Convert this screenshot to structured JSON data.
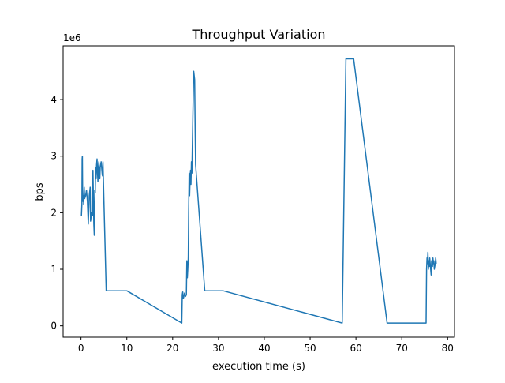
{
  "chart_data": {
    "type": "line",
    "title": "Throughput Variation",
    "xlabel": "execution time (s)",
    "ylabel": "bps",
    "y_offset_text": "1e6",
    "xlim": [
      -3.9,
      81.5
    ],
    "ylim": [
      -200000,
      4950000
    ],
    "x_ticks": [
      0,
      10,
      20,
      30,
      40,
      50,
      60,
      70,
      80
    ],
    "x_tick_labels": [
      "0",
      "10",
      "20",
      "30",
      "40",
      "50",
      "60",
      "70",
      "80"
    ],
    "y_ticks": [
      0,
      1000000,
      2000000,
      3000000,
      4000000
    ],
    "y_tick_labels": [
      "0",
      "1",
      "2",
      "3",
      "4"
    ],
    "grid": false,
    "color": "#1f77b4",
    "series": [
      {
        "x": [
          0.1,
          0.2,
          0.25,
          0.3,
          0.35,
          0.4,
          0.5,
          0.6,
          0.7,
          0.8,
          1.0,
          1.2,
          1.4,
          1.6,
          1.8,
          2.0,
          2.1,
          2.3,
          2.5,
          2.6,
          2.8,
          2.9,
          3.0,
          3.1,
          3.2,
          3.3,
          3.4,
          3.5,
          3.6,
          3.7,
          3.8,
          3.9,
          4.0,
          4.1,
          4.2,
          4.3,
          4.4,
          4.5,
          4.6,
          4.7,
          4.8,
          5.0,
          5.5,
          10.0,
          22.0,
          22.1,
          22.2,
          22.3,
          22.4,
          22.6,
          22.8,
          23.0,
          23.1,
          23.2,
          23.3,
          23.4,
          23.5,
          23.6,
          23.7,
          23.8,
          23.9,
          24.0,
          24.1,
          24.2,
          24.4,
          24.6,
          24.8,
          24.9,
          25.0,
          27.0,
          31.0,
          57.0,
          57.8,
          59.5,
          66.8,
          75.3,
          75.4,
          75.5,
          75.6,
          75.7,
          75.8,
          75.9,
          76.0,
          76.1,
          76.2,
          76.3,
          76.4,
          76.5,
          76.6,
          76.7,
          76.8,
          76.9,
          77.0,
          77.1,
          77.2,
          77.3,
          77.4,
          77.5
        ],
        "y": [
          1950000,
          2150000,
          2950000,
          3000000,
          2400000,
          2200000,
          2300000,
          2150000,
          2450000,
          2250000,
          2300000,
          2400000,
          2200000,
          1800000,
          2300000,
          2450000,
          1850000,
          2000000,
          1950000,
          2750000,
          1800000,
          1600000,
          2400000,
          2350000,
          2800000,
          2600000,
          2850000,
          2950000,
          2700000,
          2550000,
          2800000,
          2900000,
          2650000,
          2600000,
          2800000,
          2850000,
          2900000,
          2800000,
          2700000,
          2650000,
          2900000,
          2200000,
          620000,
          620000,
          50000,
          550000,
          600000,
          480000,
          500000,
          580000,
          520000,
          550000,
          1150000,
          850000,
          1000000,
          1200000,
          2000000,
          2700000,
          2300000,
          2600000,
          2750000,
          2500000,
          2900000,
          2700000,
          3700000,
          4500000,
          4350000,
          3500000,
          2850000,
          620000,
          620000,
          50000,
          4720000,
          4720000,
          50000,
          50000,
          1000000,
          1200000,
          1100000,
          1300000,
          1000000,
          1150000,
          1050000,
          1200000,
          1100000,
          1000000,
          900000,
          1150000,
          1100000,
          1050000,
          1200000,
          1100000,
          1150000,
          1000000,
          1050000,
          1100000,
          1200000,
          1100000
        ]
      }
    ]
  }
}
